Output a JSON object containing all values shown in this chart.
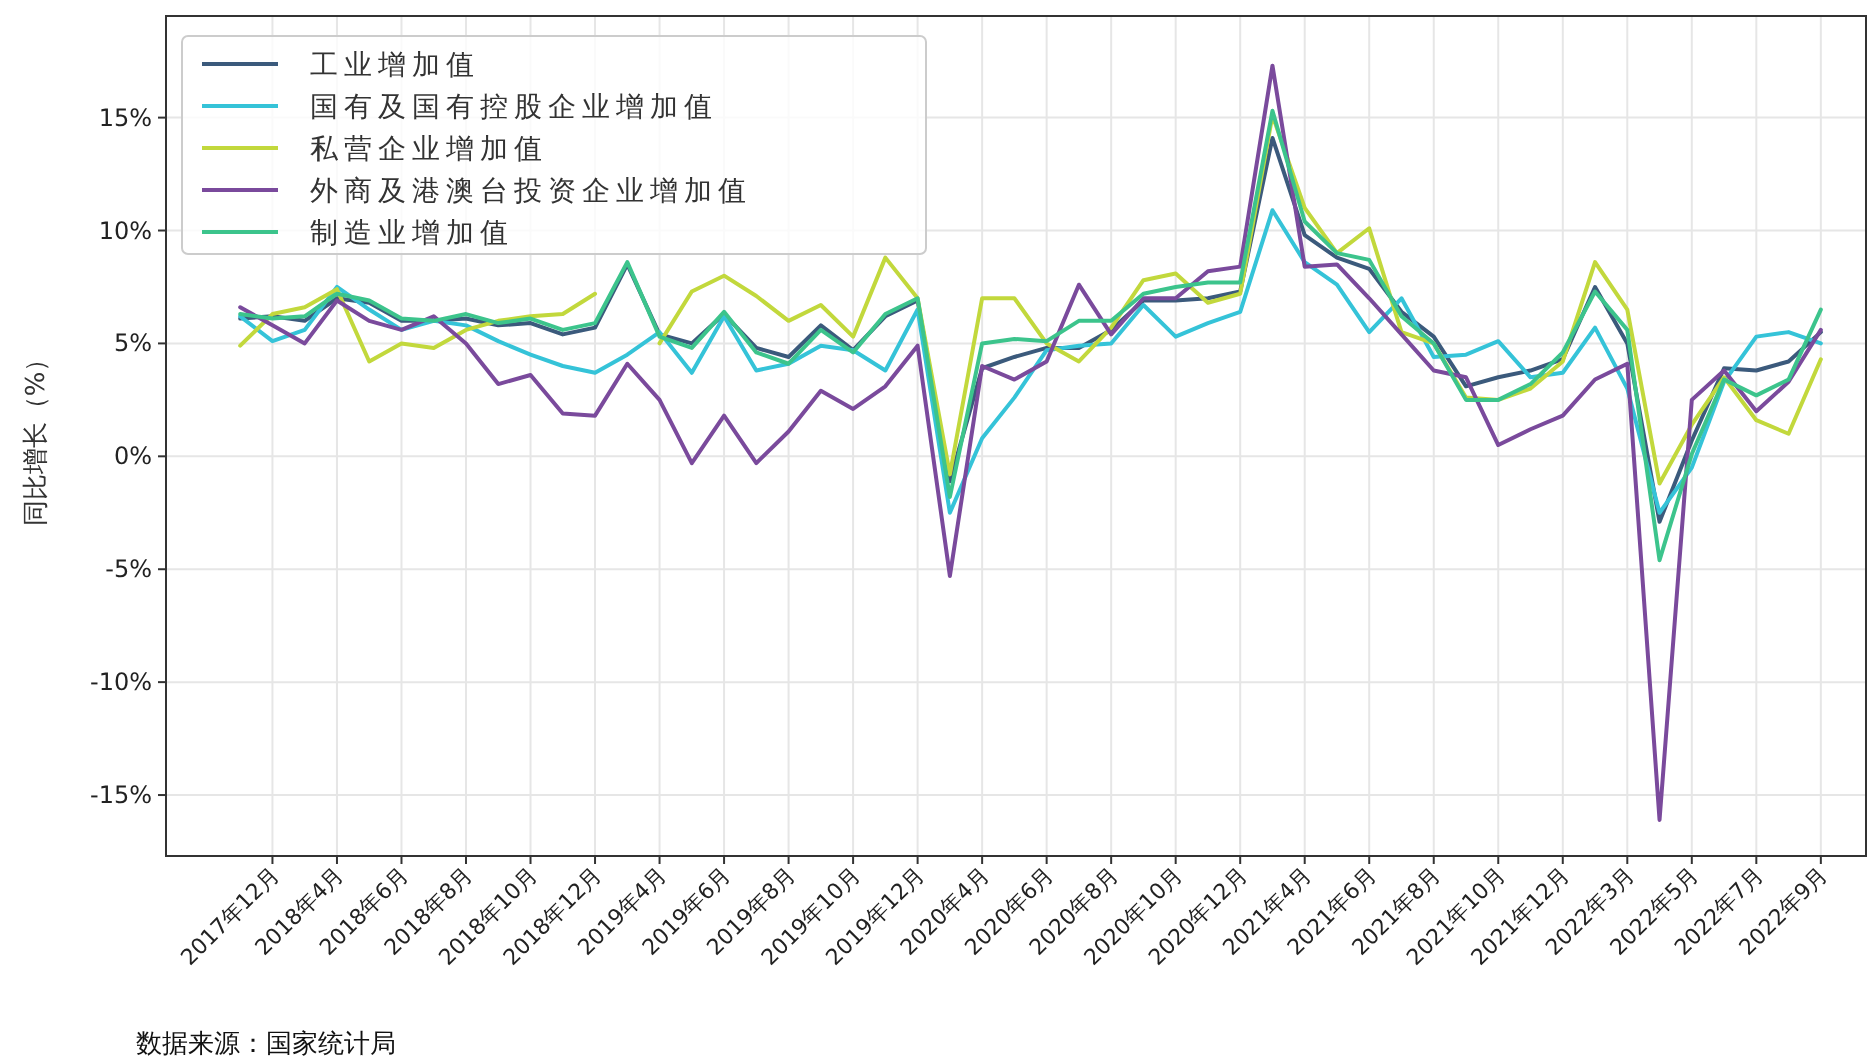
{
  "chart_data": {
    "type": "line",
    "ylabel": "同比增长（%）",
    "categories": [
      null,
      "2017年12月",
      null,
      "2018年4月",
      null,
      "2018年6月",
      null,
      "2018年8月",
      null,
      "2018年10月",
      null,
      "2018年12月",
      null,
      "2019年4月",
      null,
      "2019年6月",
      null,
      "2019年8月",
      null,
      "2019年10月",
      null,
      "2019年12月",
      null,
      "2020年4月",
      null,
      "2020年6月",
      null,
      "2020年8月",
      null,
      "2020年10月",
      null,
      "2020年12月",
      null,
      "2021年4月",
      null,
      "2021年6月",
      null,
      "2021年8月",
      null,
      "2021年10月",
      null,
      "2021年12月",
      null,
      "2022年3月",
      null,
      "2022年5月",
      null,
      "2022年7月",
      null,
      "2022年9月"
    ],
    "series": [
      {
        "name": "工业增加值",
        "color": "#3b5a7c",
        "values": [
          6.1,
          6.2,
          6.0,
          7.0,
          6.8,
          6.0,
          6.0,
          6.1,
          5.8,
          5.9,
          5.4,
          5.7,
          8.5,
          5.4,
          5.0,
          6.3,
          4.8,
          4.4,
          5.8,
          4.7,
          6.2,
          6.9,
          -1.1,
          3.9,
          4.4,
          4.8,
          4.8,
          5.6,
          6.9,
          6.9,
          7.0,
          7.3,
          14.1,
          9.8,
          8.8,
          8.3,
          6.4,
          5.3,
          3.1,
          3.5,
          3.8,
          4.3,
          7.5,
          5.0,
          -2.9,
          0.7,
          3.9,
          3.8,
          4.2,
          5.5
        ]
      },
      {
        "name": "国有及国有控股企业增加值",
        "color": "#35c3d8",
        "values": [
          6.2,
          5.1,
          5.6,
          7.5,
          6.5,
          5.6,
          6.0,
          5.8,
          5.1,
          4.5,
          4.0,
          3.7,
          4.5,
          5.5,
          3.7,
          6.2,
          3.8,
          4.1,
          4.9,
          4.7,
          3.8,
          6.5,
          -2.5,
          0.8,
          2.6,
          4.7,
          4.9,
          5.0,
          6.7,
          5.3,
          5.9,
          6.4,
          10.9,
          8.6,
          7.6,
          5.5,
          7.0,
          4.4,
          4.5,
          5.1,
          3.5,
          3.7,
          5.7,
          3.0,
          -2.5,
          -0.5,
          3.3,
          5.3,
          5.5,
          5.0
        ]
      },
      {
        "name": "私营企业增加值",
        "color": "#c2d83c",
        "values": [
          4.9,
          6.3,
          6.6,
          7.4,
          4.2,
          5.0,
          4.8,
          5.6,
          6.0,
          6.2,
          6.3,
          7.2,
          null,
          5.0,
          7.3,
          8.0,
          7.1,
          6.0,
          6.7,
          5.3,
          8.8,
          7.0,
          -0.8,
          7.0,
          7.0,
          5.0,
          4.2,
          5.7,
          7.8,
          8.1,
          6.8,
          7.2,
          15.1,
          11.0,
          9.0,
          10.1,
          5.5,
          5.0,
          2.6,
          2.5,
          3.0,
          4.2,
          8.6,
          6.5,
          -1.2,
          1.4,
          3.5,
          1.6,
          1.0,
          4.3
        ]
      },
      {
        "name": "外商及港澳台投资企业增加值",
        "color": "#7a4a9c",
        "values": [
          6.6,
          5.8,
          5.0,
          6.9,
          6.0,
          5.6,
          6.2,
          5.0,
          3.2,
          3.6,
          1.9,
          1.8,
          4.1,
          2.5,
          -0.3,
          1.8,
          -0.3,
          1.1,
          2.9,
          2.1,
          3.1,
          4.9,
          -5.3,
          4.0,
          3.4,
          4.2,
          7.6,
          5.4,
          7.0,
          7.0,
          8.2,
          8.4,
          17.3,
          8.4,
          8.5,
          7.0,
          5.4,
          3.8,
          3.5,
          0.5,
          1.2,
          1.8,
          3.4,
          4.1,
          -16.1,
          2.5,
          3.8,
          2.0,
          3.3,
          5.6
        ]
      },
      {
        "name": "制造业增加值",
        "color": "#3cc48c",
        "values": [
          6.3,
          6.1,
          6.2,
          7.2,
          6.9,
          6.1,
          6.0,
          6.3,
          5.9,
          6.1,
          5.6,
          5.9,
          8.6,
          5.3,
          4.8,
          6.4,
          4.6,
          4.1,
          5.6,
          4.6,
          6.3,
          7.0,
          -1.8,
          5.0,
          5.2,
          5.1,
          6.0,
          6.0,
          7.2,
          7.5,
          7.7,
          7.7,
          15.3,
          10.4,
          9.0,
          8.7,
          6.2,
          5.0,
          2.5,
          2.5,
          3.2,
          4.6,
          7.3,
          5.6,
          -4.6,
          0.1,
          3.4,
          2.7,
          3.4,
          6.5
        ]
      }
    ],
    "ylim": [
      -17.7,
      19.5
    ],
    "yticks": [
      {
        "value": -15,
        "label": "-15%"
      },
      {
        "value": -10,
        "label": "-10%"
      },
      {
        "value": -5,
        "label": "-5%"
      },
      {
        "value": 0,
        "label": "0%"
      },
      {
        "value": 5,
        "label": "5%"
      },
      {
        "value": 10,
        "label": "10%"
      },
      {
        "value": 15,
        "label": "15%"
      }
    ],
    "grid": true,
    "legend": "top left",
    "annotations": [
      "数据来源：国家统计局"
    ]
  }
}
